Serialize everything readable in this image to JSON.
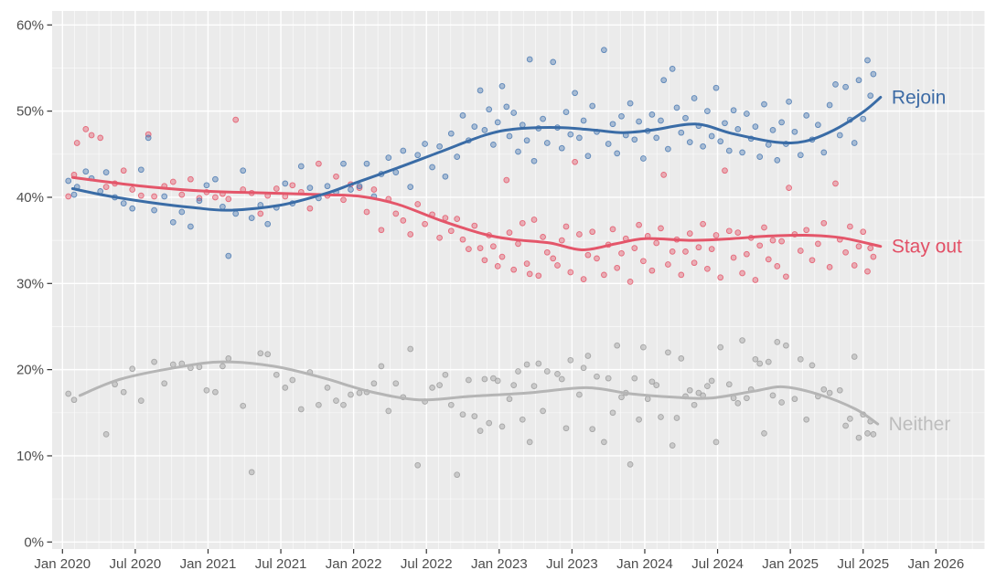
{
  "chart_data": {
    "type": "scatter",
    "title": "",
    "grid": "on",
    "legend_position": "right-inline-labels",
    "x_axis": {
      "label": "",
      "tick_labels": [
        "Jan 2020",
        "Jul 2020",
        "Jan 2021",
        "Jul 2021",
        "Jan 2022",
        "Jul 2022",
        "Jan 2023",
        "Jul 2023",
        "Jan 2024",
        "Jul 2024",
        "Jan 2025",
        "Jul 2025",
        "Jan 2026"
      ],
      "tick_values": [
        2020.0,
        2020.5,
        2021.0,
        2021.5,
        2022.0,
        2022.5,
        2023.0,
        2023.5,
        2024.0,
        2024.5,
        2025.0,
        2025.5,
        2026.0
      ],
      "minor_interval_years": 0.0833,
      "range": [
        2019.93,
        2026.34
      ]
    },
    "y_axis": {
      "label": "",
      "tick_labels": [
        "0%",
        "10%",
        "20%",
        "30%",
        "40%",
        "50%",
        "60%"
      ],
      "tick_values": [
        0,
        10,
        20,
        30,
        40,
        50,
        60
      ],
      "minor_interval": 5,
      "range": [
        0,
        62
      ]
    },
    "series": [
      {
        "id": "neither",
        "label": "Neither",
        "line_color": "#b5b5b5",
        "point_color": "#9c9c9c",
        "label_color": "#bdbdbd",
        "poll_column": 3,
        "trend": [
          [
            2020.12,
            17.0
          ],
          [
            2020.4,
            18.9
          ],
          [
            2020.8,
            20.3
          ],
          [
            2021.1,
            20.9
          ],
          [
            2021.45,
            20.4
          ],
          [
            2021.8,
            19.0
          ],
          [
            2022.1,
            17.5
          ],
          [
            2022.45,
            16.5
          ],
          [
            2022.8,
            16.9
          ],
          [
            2023.2,
            17.3
          ],
          [
            2023.6,
            17.9
          ],
          [
            2023.9,
            17.2
          ],
          [
            2024.2,
            16.8
          ],
          [
            2024.45,
            16.7
          ],
          [
            2024.75,
            17.5
          ],
          [
            2024.95,
            18.0
          ],
          [
            2025.2,
            17.1
          ],
          [
            2025.45,
            15.4
          ],
          [
            2025.6,
            13.7
          ]
        ]
      },
      {
        "id": "stay_out",
        "label": "Stay out",
        "line_color": "#e4566a",
        "point_color": "#e4566a",
        "label_color": "#e25066",
        "poll_column": 2,
        "trend": [
          [
            2020.07,
            42.3
          ],
          [
            2020.3,
            41.8
          ],
          [
            2020.6,
            41.2
          ],
          [
            2021.0,
            40.7
          ],
          [
            2021.4,
            40.5
          ],
          [
            2021.8,
            40.3
          ],
          [
            2022.05,
            40.1
          ],
          [
            2022.3,
            39.2
          ],
          [
            2022.6,
            37.3
          ],
          [
            2022.9,
            35.7
          ],
          [
            2023.1,
            35.1
          ],
          [
            2023.35,
            34.7
          ],
          [
            2023.57,
            33.9
          ],
          [
            2023.8,
            34.6
          ],
          [
            2024.0,
            35.2
          ],
          [
            2024.33,
            35.0
          ],
          [
            2024.6,
            35.2
          ],
          [
            2024.85,
            35.5
          ],
          [
            2025.1,
            35.6
          ],
          [
            2025.35,
            35.3
          ],
          [
            2025.62,
            34.3
          ]
        ]
      },
      {
        "id": "rejoin",
        "label": "Rejoin",
        "line_color": "#3a6ca6",
        "point_color": "#4a79b2",
        "label_color": "#3d6ba5",
        "poll_column": 1,
        "trend": [
          [
            2020.07,
            41.0
          ],
          [
            2020.3,
            40.2
          ],
          [
            2020.6,
            39.4
          ],
          [
            2020.9,
            38.8
          ],
          [
            2021.15,
            38.5
          ],
          [
            2021.5,
            39.1
          ],
          [
            2021.8,
            40.4
          ],
          [
            2022.0,
            41.6
          ],
          [
            2022.3,
            43.4
          ],
          [
            2022.6,
            45.3
          ],
          [
            2022.9,
            47.2
          ],
          [
            2023.1,
            47.9
          ],
          [
            2023.4,
            48.1
          ],
          [
            2023.65,
            47.8
          ],
          [
            2023.85,
            47.5
          ],
          [
            2024.05,
            47.8
          ],
          [
            2024.35,
            48.5
          ],
          [
            2024.6,
            47.4
          ],
          [
            2024.9,
            46.4
          ],
          [
            2025.1,
            46.5
          ],
          [
            2025.3,
            47.8
          ],
          [
            2025.5,
            49.9
          ],
          [
            2025.62,
            51.6
          ]
        ]
      }
    ],
    "polls": {
      "columns": [
        "date_decimal_year",
        "rejoin_pct",
        "stay_out_pct",
        "neither_pct"
      ],
      "rows": [
        [
          2020.04,
          41.9,
          40.1,
          17.2
        ],
        [
          2020.08,
          40.3,
          42.6,
          16.5
        ],
        [
          2020.1,
          41.2,
          46.3,
          null
        ],
        [
          2020.16,
          43.0,
          47.9,
          null
        ],
        [
          2020.2,
          42.2,
          47.2,
          null
        ],
        [
          2020.26,
          40.7,
          46.9,
          null
        ],
        [
          2020.3,
          42.9,
          41.2,
          12.5
        ],
        [
          2020.36,
          40.0,
          41.6,
          18.3
        ],
        [
          2020.42,
          39.3,
          43.1,
          17.4
        ],
        [
          2020.48,
          38.7,
          40.9,
          20.1
        ],
        [
          2020.54,
          43.2,
          40.2,
          16.4
        ],
        [
          2020.59,
          46.9,
          47.3,
          null
        ],
        [
          2020.63,
          38.5,
          40.1,
          20.9
        ],
        [
          2020.7,
          40.1,
          41.3,
          18.4
        ],
        [
          2020.76,
          37.1,
          41.8,
          20.6
        ],
        [
          2020.82,
          38.3,
          40.3,
          20.7
        ],
        [
          2020.88,
          36.6,
          42.1,
          20.2
        ],
        [
          2020.94,
          39.6,
          39.9,
          20.3
        ],
        [
          2020.99,
          41.4,
          40.6,
          17.6
        ],
        [
          2021.05,
          42.1,
          40.0,
          17.4
        ],
        [
          2021.1,
          38.9,
          40.4,
          20.4
        ],
        [
          2021.14,
          33.2,
          39.8,
          21.3
        ],
        [
          2021.19,
          38.1,
          49.0,
          null
        ],
        [
          2021.24,
          43.1,
          40.9,
          15.8
        ],
        [
          2021.3,
          37.6,
          40.5,
          8.1
        ],
        [
          2021.36,
          39.1,
          38.1,
          21.9
        ],
        [
          2021.41,
          36.9,
          40.2,
          21.8
        ],
        [
          2021.47,
          38.8,
          41.0,
          19.4
        ],
        [
          2021.53,
          41.6,
          40.1,
          17.9
        ],
        [
          2021.58,
          39.3,
          41.4,
          18.8
        ],
        [
          2021.64,
          43.6,
          40.6,
          15.4
        ],
        [
          2021.7,
          41.1,
          38.7,
          19.7
        ],
        [
          2021.76,
          39.9,
          43.9,
          15.9
        ],
        [
          2021.82,
          41.3,
          40.2,
          17.9
        ],
        [
          2021.88,
          40.6,
          42.4,
          16.4
        ],
        [
          2021.93,
          43.9,
          39.7,
          15.9
        ],
        [
          2021.98,
          40.9,
          41.5,
          17.1
        ],
        [
          2022.04,
          41.3,
          41.1,
          17.3
        ],
        [
          2022.09,
          43.9,
          38.3,
          17.4
        ],
        [
          2022.14,
          40.1,
          40.9,
          18.4
        ],
        [
          2022.19,
          42.7,
          36.2,
          20.4
        ],
        [
          2022.24,
          44.6,
          39.8,
          15.2
        ],
        [
          2022.29,
          42.9,
          38.1,
          18.4
        ],
        [
          2022.34,
          45.4,
          37.3,
          16.8
        ],
        [
          2022.39,
          41.2,
          35.7,
          22.4
        ],
        [
          2022.44,
          44.9,
          39.2,
          8.9
        ],
        [
          2022.49,
          46.2,
          36.9,
          16.3
        ],
        [
          2022.54,
          43.5,
          38.0,
          17.9
        ],
        [
          2022.59,
          45.9,
          35.3,
          18.2
        ],
        [
          2022.63,
          42.4,
          37.6,
          19.4
        ],
        [
          2022.67,
          47.4,
          36.1,
          15.9
        ],
        [
          2022.71,
          44.7,
          37.5,
          7.8
        ],
        [
          2022.75,
          49.5,
          35.1,
          14.8
        ],
        [
          2022.79,
          46.6,
          34.0,
          18.8
        ],
        [
          2022.83,
          48.2,
          36.7,
          14.6
        ],
        [
          2022.87,
          52.4,
          34.1,
          12.9
        ],
        [
          2022.9,
          47.8,
          32.7,
          18.9
        ],
        [
          2022.93,
          50.2,
          35.6,
          13.8
        ],
        [
          2022.96,
          46.1,
          34.3,
          19.0
        ],
        [
          2022.99,
          48.7,
          32.0,
          18.7
        ],
        [
          2023.02,
          52.9,
          33.1,
          13.4
        ],
        [
          2023.05,
          50.5,
          42.0,
          null
        ],
        [
          2023.07,
          47.1,
          35.9,
          16.6
        ],
        [
          2023.1,
          49.8,
          31.6,
          18.2
        ],
        [
          2023.13,
          45.3,
          34.6,
          19.8
        ],
        [
          2023.16,
          48.4,
          37.0,
          14.2
        ],
        [
          2023.19,
          46.6,
          32.3,
          20.6
        ],
        [
          2023.21,
          56.0,
          31.1,
          11.6
        ],
        [
          2023.24,
          44.2,
          37.4,
          18.1
        ],
        [
          2023.27,
          48.0,
          30.9,
          20.7
        ],
        [
          2023.3,
          49.1,
          35.4,
          15.2
        ],
        [
          2023.33,
          46.3,
          33.6,
          19.8
        ],
        [
          2023.37,
          55.7,
          32.9,
          null
        ],
        [
          2023.4,
          48.1,
          32.1,
          19.5
        ],
        [
          2023.43,
          45.7,
          35.0,
          18.9
        ],
        [
          2023.46,
          49.9,
          36.6,
          13.2
        ],
        [
          2023.49,
          47.3,
          31.3,
          21.1
        ],
        [
          2023.52,
          52.1,
          44.1,
          null
        ],
        [
          2023.55,
          46.9,
          35.7,
          17.1
        ],
        [
          2023.58,
          48.9,
          30.5,
          20.2
        ],
        [
          2023.61,
          44.8,
          33.3,
          21.6
        ],
        [
          2023.64,
          50.6,
          36.0,
          13.1
        ],
        [
          2023.67,
          47.6,
          32.9,
          19.2
        ],
        [
          2023.72,
          57.1,
          31.0,
          11.6
        ],
        [
          2023.75,
          46.2,
          34.5,
          19.0
        ],
        [
          2023.78,
          48.5,
          36.3,
          15.0
        ],
        [
          2023.81,
          45.1,
          31.8,
          22.8
        ],
        [
          2023.84,
          49.4,
          33.5,
          16.8
        ],
        [
          2023.87,
          47.2,
          35.2,
          17.3
        ],
        [
          2023.9,
          50.9,
          30.2,
          9.0
        ],
        [
          2023.93,
          46.7,
          34.1,
          19.0
        ],
        [
          2023.96,
          48.8,
          36.8,
          14.2
        ],
        [
          2023.99,
          44.5,
          32.6,
          22.6
        ],
        [
          2024.02,
          47.7,
          35.5,
          16.6
        ],
        [
          2024.05,
          49.6,
          31.5,
          18.6
        ],
        [
          2024.08,
          46.9,
          34.7,
          18.2
        ],
        [
          2024.11,
          48.9,
          36.4,
          14.5
        ],
        [
          2024.13,
          53.6,
          42.6,
          null
        ],
        [
          2024.16,
          45.6,
          32.2,
          22.0
        ],
        [
          2024.19,
          54.9,
          33.7,
          11.2
        ],
        [
          2024.22,
          50.4,
          35.1,
          14.4
        ],
        [
          2024.25,
          47.5,
          31.0,
          21.3
        ],
        [
          2024.28,
          49.2,
          33.7,
          16.9
        ],
        [
          2024.31,
          46.4,
          35.8,
          17.6
        ],
        [
          2024.34,
          51.5,
          32.4,
          15.9
        ],
        [
          2024.37,
          48.3,
          34.2,
          17.3
        ],
        [
          2024.4,
          45.9,
          36.9,
          17.0
        ],
        [
          2024.43,
          50.0,
          31.7,
          18.1
        ],
        [
          2024.46,
          47.1,
          34.0,
          18.7
        ],
        [
          2024.49,
          52.7,
          35.6,
          11.6
        ],
        [
          2024.52,
          46.5,
          30.7,
          22.6
        ],
        [
          2024.55,
          48.6,
          43.1,
          null
        ],
        [
          2024.58,
          45.4,
          36.1,
          18.3
        ],
        [
          2024.61,
          50.1,
          33.0,
          16.7
        ],
        [
          2024.64,
          47.9,
          35.9,
          16.1
        ],
        [
          2024.67,
          45.2,
          31.2,
          23.4
        ],
        [
          2024.7,
          49.7,
          33.4,
          16.7
        ],
        [
          2024.73,
          46.8,
          35.3,
          17.7
        ],
        [
          2024.76,
          48.2,
          30.4,
          21.2
        ],
        [
          2024.79,
          44.7,
          34.4,
          20.7
        ],
        [
          2024.82,
          50.8,
          36.5,
          12.6
        ],
        [
          2024.85,
          46.1,
          32.8,
          20.9
        ],
        [
          2024.88,
          47.8,
          35.0,
          17.0
        ],
        [
          2024.91,
          44.3,
          32.0,
          23.2
        ],
        [
          2024.94,
          48.7,
          34.9,
          16.2
        ],
        [
          2024.97,
          46.2,
          30.8,
          22.8
        ],
        [
          2024.99,
          51.1,
          41.1,
          null
        ],
        [
          2025.03,
          47.6,
          35.7,
          16.6
        ],
        [
          2025.07,
          44.9,
          33.8,
          21.2
        ],
        [
          2025.11,
          49.5,
          36.2,
          14.2
        ],
        [
          2025.15,
          46.7,
          32.7,
          20.5
        ],
        [
          2025.19,
          48.4,
          34.6,
          16.9
        ],
        [
          2025.23,
          45.2,
          37.0,
          17.7
        ],
        [
          2025.27,
          50.7,
          31.9,
          17.3
        ],
        [
          2025.31,
          53.1,
          41.6,
          null
        ],
        [
          2025.34,
          47.2,
          35.1,
          17.6
        ],
        [
          2025.38,
          52.8,
          33.6,
          13.5
        ],
        [
          2025.41,
          49.0,
          36.6,
          14.3
        ],
        [
          2025.44,
          46.3,
          32.1,
          21.5
        ],
        [
          2025.47,
          53.6,
          34.3,
          12.1
        ],
        [
          2025.5,
          49.1,
          36.0,
          14.8
        ],
        [
          2025.53,
          55.9,
          31.4,
          12.6
        ],
        [
          2025.55,
          51.8,
          34.1,
          14.0
        ],
        [
          2025.57,
          54.3,
          33.1,
          12.5
        ]
      ]
    }
  },
  "colors": {
    "page_bg": "#ffffff",
    "panel_bg": "#ebebeb",
    "grid_major": "#ffffff",
    "grid_minor": "#ffffff",
    "axis_text": "#4d4d4d",
    "axis_tick": "#333333"
  }
}
